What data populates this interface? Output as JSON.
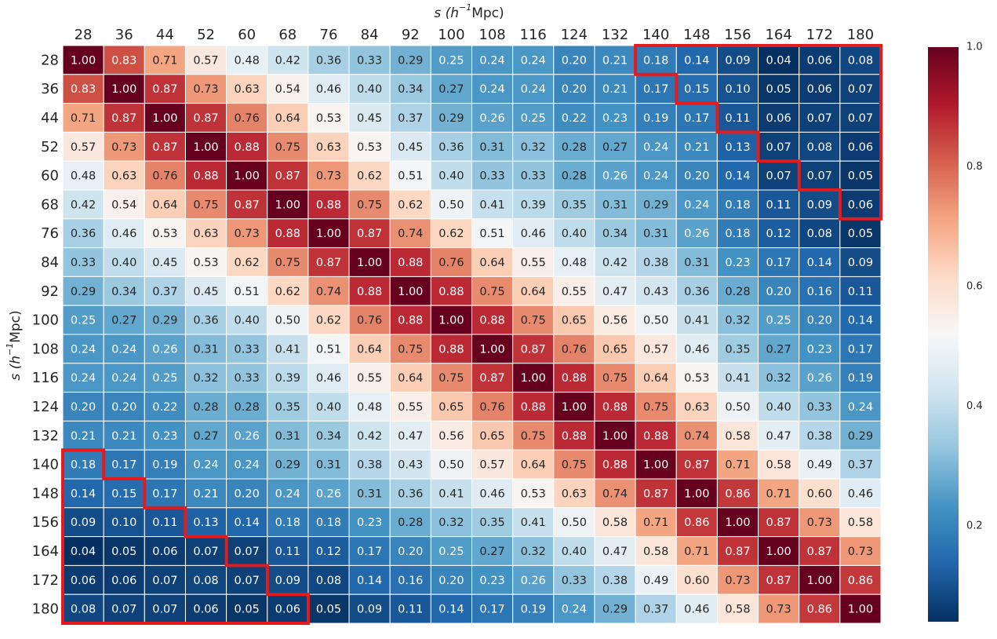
{
  "chart_data": {
    "type": "heatmap",
    "xlabel": "s (h⁻¹Mpc)",
    "ylabel": "s (h⁻¹Mpc)",
    "x_ticks": [
      28,
      36,
      44,
      52,
      60,
      68,
      76,
      84,
      92,
      100,
      108,
      116,
      124,
      132,
      140,
      148,
      156,
      164,
      172,
      180
    ],
    "y_ticks": [
      28,
      36,
      44,
      52,
      60,
      68,
      76,
      84,
      92,
      100,
      108,
      116,
      124,
      132,
      140,
      148,
      156,
      164,
      172,
      180
    ],
    "values": [
      [
        1.0,
        0.83,
        0.71,
        0.57,
        0.48,
        0.42,
        0.36,
        0.33,
        0.29,
        0.25,
        0.24,
        0.24,
        0.2,
        0.21,
        0.18,
        0.14,
        0.09,
        0.04,
        0.06,
        0.08
      ],
      [
        0.83,
        1.0,
        0.87,
        0.73,
        0.63,
        0.54,
        0.46,
        0.4,
        0.34,
        0.27,
        0.24,
        0.24,
        0.2,
        0.21,
        0.17,
        0.15,
        0.1,
        0.05,
        0.06,
        0.07
      ],
      [
        0.71,
        0.87,
        1.0,
        0.87,
        0.76,
        0.64,
        0.53,
        0.45,
        0.37,
        0.29,
        0.26,
        0.25,
        0.22,
        0.23,
        0.19,
        0.17,
        0.11,
        0.06,
        0.07,
        0.07
      ],
      [
        0.57,
        0.73,
        0.87,
        1.0,
        0.88,
        0.75,
        0.63,
        0.53,
        0.45,
        0.36,
        0.31,
        0.32,
        0.28,
        0.27,
        0.24,
        0.21,
        0.13,
        0.07,
        0.08,
        0.06
      ],
      [
        0.48,
        0.63,
        0.76,
        0.88,
        1.0,
        0.87,
        0.73,
        0.62,
        0.51,
        0.4,
        0.33,
        0.33,
        0.28,
        0.26,
        0.24,
        0.2,
        0.14,
        0.07,
        0.07,
        0.05
      ],
      [
        0.42,
        0.54,
        0.64,
        0.75,
        0.87,
        1.0,
        0.88,
        0.75,
        0.62,
        0.5,
        0.41,
        0.39,
        0.35,
        0.31,
        0.29,
        0.24,
        0.18,
        0.11,
        0.09,
        0.06
      ],
      [
        0.36,
        0.46,
        0.53,
        0.63,
        0.73,
        0.88,
        1.0,
        0.87,
        0.74,
        0.62,
        0.51,
        0.46,
        0.4,
        0.34,
        0.31,
        0.26,
        0.18,
        0.12,
        0.08,
        0.05
      ],
      [
        0.33,
        0.4,
        0.45,
        0.53,
        0.62,
        0.75,
        0.87,
        1.0,
        0.88,
        0.76,
        0.64,
        0.55,
        0.48,
        0.42,
        0.38,
        0.31,
        0.23,
        0.17,
        0.14,
        0.09
      ],
      [
        0.29,
        0.34,
        0.37,
        0.45,
        0.51,
        0.62,
        0.74,
        0.88,
        1.0,
        0.88,
        0.75,
        0.64,
        0.55,
        0.47,
        0.43,
        0.36,
        0.28,
        0.2,
        0.16,
        0.11
      ],
      [
        0.25,
        0.27,
        0.29,
        0.36,
        0.4,
        0.5,
        0.62,
        0.76,
        0.88,
        1.0,
        0.88,
        0.75,
        0.65,
        0.56,
        0.5,
        0.41,
        0.32,
        0.25,
        0.2,
        0.14
      ],
      [
        0.24,
        0.24,
        0.26,
        0.31,
        0.33,
        0.41,
        0.51,
        0.64,
        0.75,
        0.88,
        1.0,
        0.87,
        0.76,
        0.65,
        0.57,
        0.46,
        0.35,
        0.27,
        0.23,
        0.17
      ],
      [
        0.24,
        0.24,
        0.25,
        0.32,
        0.33,
        0.39,
        0.46,
        0.55,
        0.64,
        0.75,
        0.87,
        1.0,
        0.88,
        0.75,
        0.64,
        0.53,
        0.41,
        0.32,
        0.26,
        0.19
      ],
      [
        0.2,
        0.2,
        0.22,
        0.28,
        0.28,
        0.35,
        0.4,
        0.48,
        0.55,
        0.65,
        0.76,
        0.88,
        1.0,
        0.88,
        0.75,
        0.63,
        0.5,
        0.4,
        0.33,
        0.24
      ],
      [
        0.21,
        0.21,
        0.23,
        0.27,
        0.26,
        0.31,
        0.34,
        0.42,
        0.47,
        0.56,
        0.65,
        0.75,
        0.88,
        1.0,
        0.88,
        0.74,
        0.58,
        0.47,
        0.38,
        0.29
      ],
      [
        0.18,
        0.17,
        0.19,
        0.24,
        0.24,
        0.29,
        0.31,
        0.38,
        0.43,
        0.5,
        0.57,
        0.64,
        0.75,
        0.88,
        1.0,
        0.87,
        0.71,
        0.58,
        0.49,
        0.37
      ],
      [
        0.14,
        0.15,
        0.17,
        0.21,
        0.2,
        0.24,
        0.26,
        0.31,
        0.36,
        0.41,
        0.46,
        0.53,
        0.63,
        0.74,
        0.87,
        1.0,
        0.86,
        0.71,
        0.6,
        0.46
      ],
      [
        0.09,
        0.1,
        0.11,
        0.13,
        0.14,
        0.18,
        0.18,
        0.23,
        0.28,
        0.32,
        0.35,
        0.41,
        0.5,
        0.58,
        0.71,
        0.86,
        1.0,
        0.87,
        0.73,
        0.58
      ],
      [
        0.04,
        0.05,
        0.06,
        0.07,
        0.07,
        0.11,
        0.12,
        0.17,
        0.2,
        0.25,
        0.27,
        0.32,
        0.4,
        0.47,
        0.58,
        0.71,
        0.87,
        1.0,
        0.87,
        0.73
      ],
      [
        0.06,
        0.06,
        0.07,
        0.08,
        0.07,
        0.09,
        0.08,
        0.14,
        0.16,
        0.2,
        0.23,
        0.26,
        0.33,
        0.38,
        0.49,
        0.6,
        0.73,
        0.87,
        1.0,
        0.86
      ],
      [
        0.08,
        0.07,
        0.07,
        0.06,
        0.05,
        0.06,
        0.05,
        0.09,
        0.11,
        0.14,
        0.17,
        0.19,
        0.24,
        0.29,
        0.37,
        0.46,
        0.58,
        0.73,
        0.86,
        1.0
      ]
    ],
    "value_format": "2 decimals",
    "colormap": "RdBu_r",
    "vmin": 0.04,
    "vmax": 1.0,
    "colorbar_ticks": [
      "0.2",
      "0.4",
      "0.6",
      "0.8",
      "1.0"
    ],
    "grid": true,
    "highlight_color": "#e41a1c",
    "highlight_regions": [
      {
        "description": "upper-right corner block above staircase",
        "rows": [
          28,
          68
        ],
        "cols": [
          140,
          180
        ]
      },
      {
        "description": "lower-left corner block below staircase",
        "rows": [
          140,
          180
        ],
        "cols": [
          28,
          68
        ]
      }
    ]
  }
}
